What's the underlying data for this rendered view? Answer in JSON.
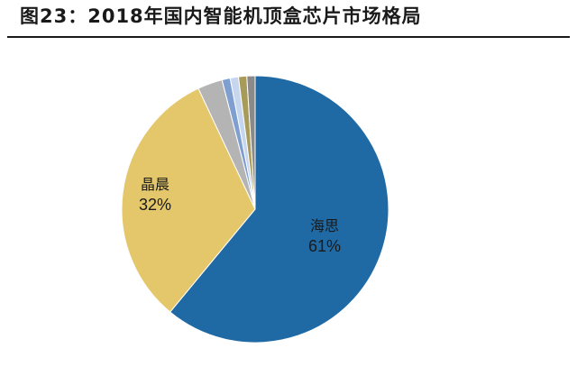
{
  "header": {
    "title": "图23：2018年国内智能机顶盒芯片市场格局"
  },
  "chart_data": {
    "type": "pie",
    "title": "图23：2018年国内智能机顶盒芯片市场格局",
    "start_angle_deg": 0,
    "direction": "clockwise",
    "slices": [
      {
        "label": "海思",
        "value": 61,
        "display": "61%",
        "color": "#1f6aa5"
      },
      {
        "label": "晶晨",
        "value": 32,
        "display": "32%",
        "color": "#e4c76a"
      },
      {
        "label": "",
        "value": 3,
        "display": "",
        "color": "#b4b4b4"
      },
      {
        "label": "",
        "value": 1,
        "display": "",
        "color": "#7f9fd0"
      },
      {
        "label": "",
        "value": 1,
        "display": "",
        "color": "#c5d6ee"
      },
      {
        "label": "",
        "value": 1,
        "display": "",
        "color": "#a89a58"
      },
      {
        "label": "",
        "value": 1,
        "display": "",
        "color": "#8a8a8a"
      }
    ]
  },
  "labels": {
    "haisi_name": "海思",
    "haisi_pct": "61%",
    "jingchen_name": "晶晨",
    "jingchen_pct": "32%"
  }
}
